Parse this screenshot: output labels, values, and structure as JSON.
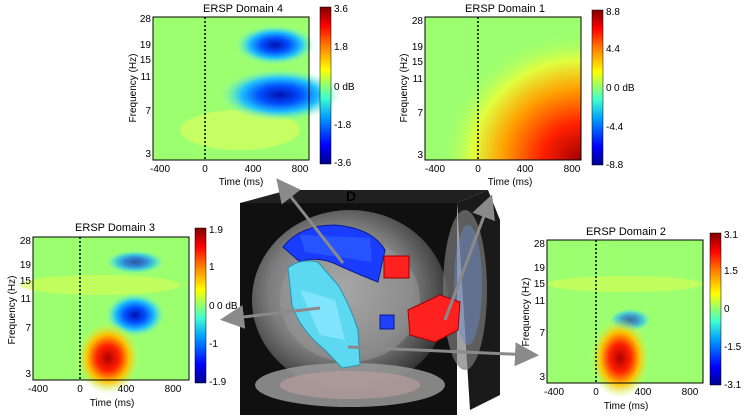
{
  "panel_label": "D",
  "colorscale": [
    "#00008f",
    "#0000ff",
    "#0080ff",
    "#00ffff",
    "#80ff80",
    "#ffff00",
    "#ff8000",
    "#ff0000",
    "#800000"
  ],
  "common": {
    "ylabel": "Frequency (Hz)",
    "xlabel": "Time (ms)",
    "yticks": [
      "28",
      "19",
      "15",
      "11",
      "7",
      "3"
    ],
    "xticks": [
      "-400",
      "0",
      "400",
      "800"
    ],
    "cb_mid_label": "0 dB"
  },
  "panels": [
    {
      "id": "domain4",
      "title": "ERSP Domain 4",
      "cbar": [
        "3.6",
        "1.8",
        "0 dB",
        "-1.8",
        "-3.6"
      ]
    },
    {
      "id": "domain1",
      "title": "ERSP Domain 1",
      "cbar": [
        "8.8",
        "4.4",
        "0",
        "-4.4",
        "-8.8"
      ]
    },
    {
      "id": "domain3",
      "title": "ERSP Domain 3",
      "cbar": [
        "1.9",
        "1",
        "0",
        "-1",
        "-1.9"
      ]
    },
    {
      "id": "domain2",
      "title": "ERSP Domain 2",
      "cbar": [
        "3.1",
        "1.5",
        "0",
        "-1.5",
        "-3.1"
      ]
    }
  ]
}
